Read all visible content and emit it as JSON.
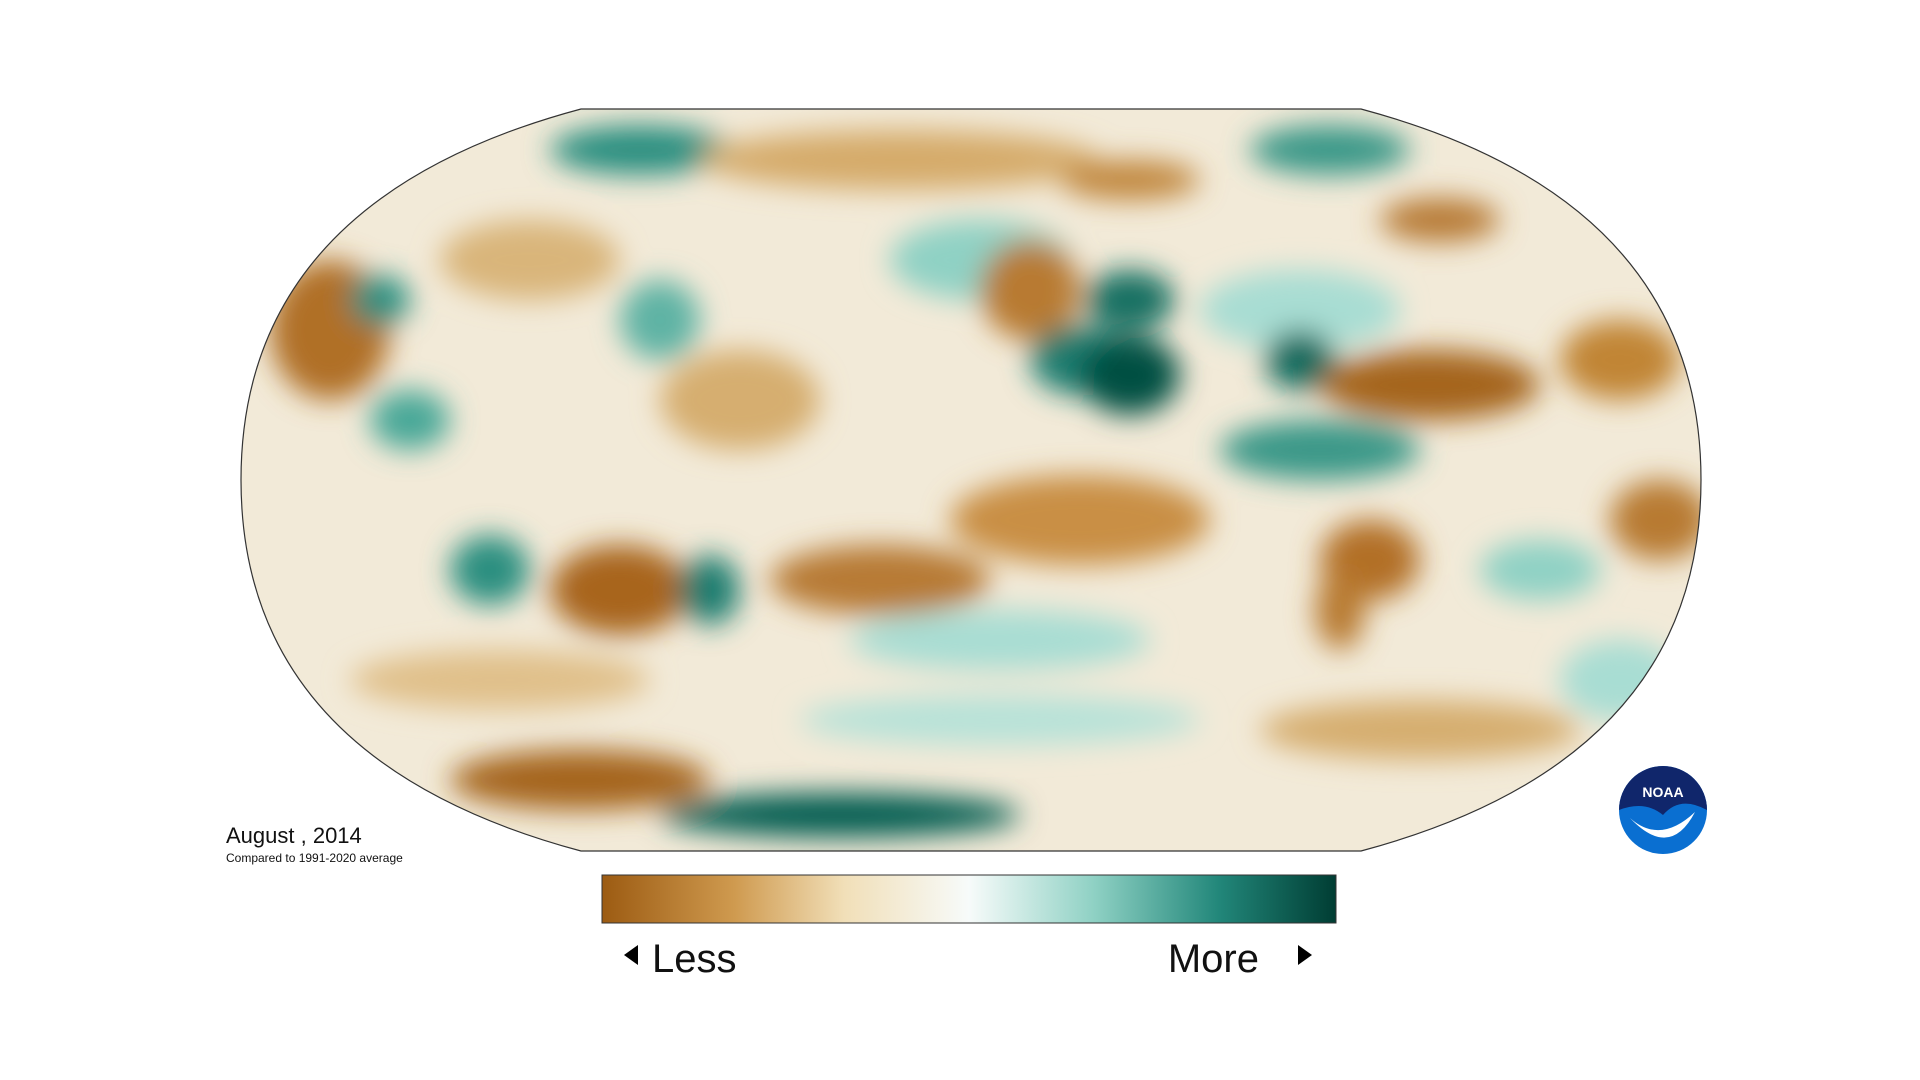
{
  "title": "August , 2014",
  "subtitle": "Compared to 1991-2020 average",
  "legend": {
    "low": "Less",
    "high": "More"
  },
  "logo": "NOAA"
}
